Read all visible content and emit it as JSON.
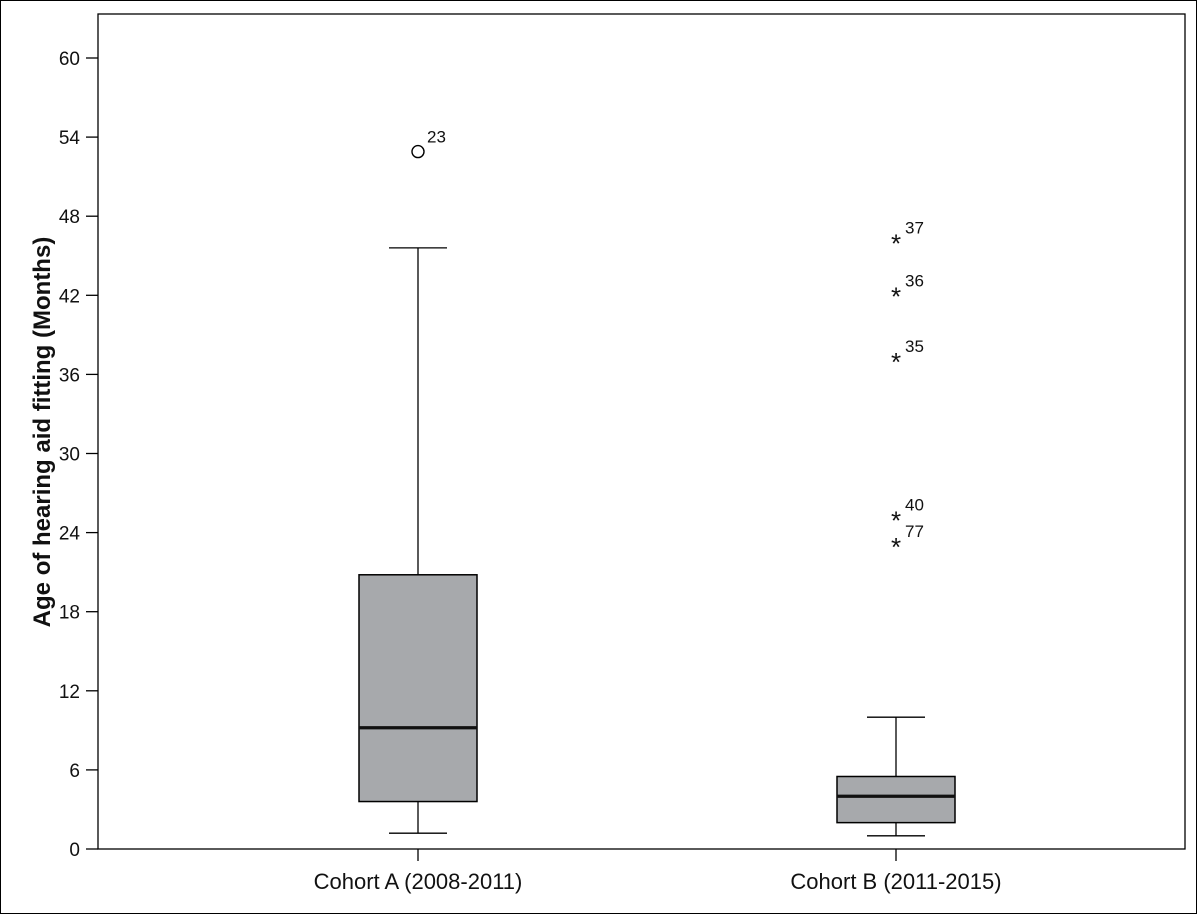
{
  "chart_data": {
    "type": "boxplot",
    "title": "",
    "xlabel": "",
    "ylabel": "Age of hearing aid fitting (Months)",
    "ylim": [
      0,
      60
    ],
    "yticks": [
      0,
      6,
      12,
      18,
      24,
      30,
      36,
      42,
      48,
      54,
      60
    ],
    "grid": false,
    "categories": [
      "Cohort A (2008-2011)",
      "Cohort B (2011-2015)"
    ],
    "boxes": [
      {
        "category": "Cohort A (2008-2011)",
        "whisker_low": 1.2,
        "q1": 3.6,
        "median": 9.2,
        "q3": 20.8,
        "whisker_high": 45.6,
        "color": "#a7a9ac",
        "outliers": [
          {
            "value": 52.9,
            "label": "23",
            "marker": "circle"
          }
        ]
      },
      {
        "category": "Cohort B (2011-2015)",
        "whisker_low": 1.0,
        "q1": 2.0,
        "median": 4.0,
        "q3": 5.5,
        "whisker_high": 10.0,
        "color": "#a7a9ac",
        "outliers": [
          {
            "value": 46.0,
            "label": "37",
            "marker": "star"
          },
          {
            "value": 42.0,
            "label": "36",
            "marker": "star"
          },
          {
            "value": 37.0,
            "label": "35",
            "marker": "star"
          },
          {
            "value": 25.0,
            "label": "40",
            "marker": "star"
          },
          {
            "value": 23.0,
            "label": "77",
            "marker": "star"
          }
        ]
      }
    ]
  }
}
